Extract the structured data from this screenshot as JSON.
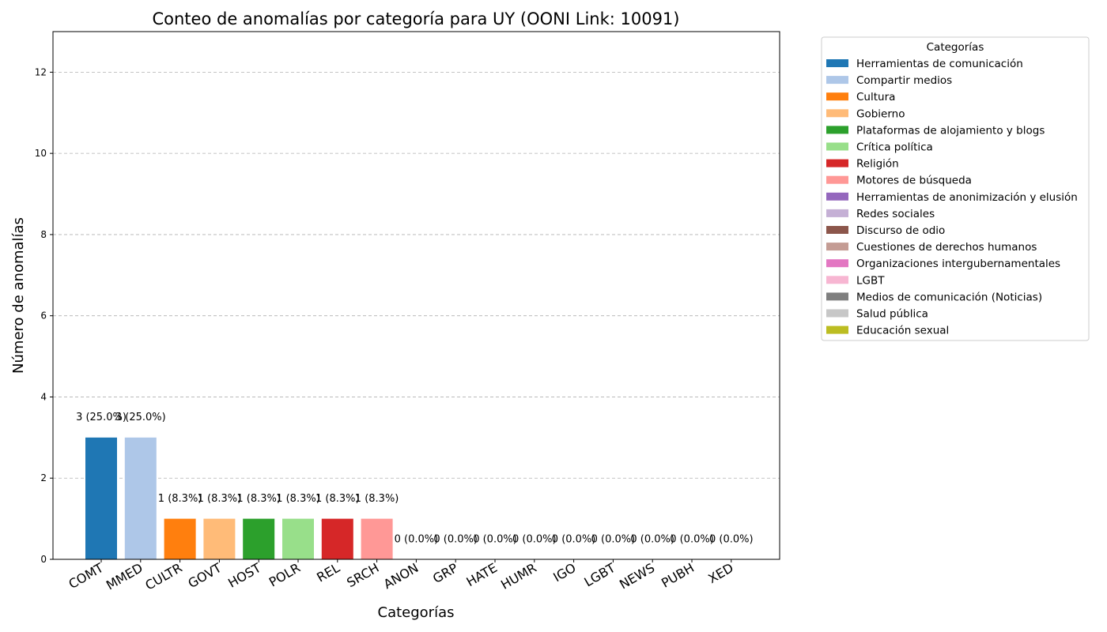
{
  "chart_data": {
    "type": "bar",
    "title": "Conteo de anomalías por categoría para UY (OONI Link: 10091)",
    "xlabel": "Categorías",
    "ylabel": "Número de anomalías",
    "ylim": [
      0,
      13
    ],
    "yticks": [
      0,
      2,
      4,
      6,
      8,
      10,
      12
    ],
    "grid": "y-dashed",
    "categories": [
      "COMT",
      "MMED",
      "CULTR",
      "GOVT",
      "HOST",
      "POLR",
      "REL",
      "SRCH",
      "ANON",
      "GRP",
      "HATE",
      "HUMR",
      "IGO",
      "LGBT",
      "NEWS",
      "PUBH",
      "XED"
    ],
    "values": [
      3,
      3,
      1,
      1,
      1,
      1,
      1,
      1,
      0,
      0,
      0,
      0,
      0,
      0,
      0,
      0,
      0
    ],
    "data_labels": [
      "3 (25.0%)",
      "3 (25.0%)",
      "1 (8.3%)",
      "1 (8.3%)",
      "1 (8.3%)",
      "1 (8.3%)",
      "1 (8.3%)",
      "1 (8.3%)",
      "0 (0.0%)",
      "0 (0.0%)",
      "0 (0.0%)",
      "0 (0.0%)",
      "0 (0.0%)",
      "0 (0.0%)",
      "0 (0.0%)",
      "0 (0.0%)",
      "0 (0.0%)"
    ],
    "colors": [
      "#1f77b4",
      "#aec7e8",
      "#ff7f0e",
      "#ffbb78",
      "#2ca02c",
      "#98df8a",
      "#d62728",
      "#ff9896",
      "#9467bd",
      "#c5b0d5",
      "#8c564b",
      "#c49c94",
      "#e377c2",
      "#f7b6d2",
      "#7f7f7f",
      "#c7c7c7",
      "#bcbd22"
    ],
    "legend": {
      "title": "Categorías",
      "placement": "outside-right-top",
      "entries": [
        "Herramientas de comunicación",
        "Compartir medios",
        "Cultura",
        "Gobierno",
        "Plataformas de alojamiento y blogs",
        "Crítica política",
        "Religión",
        "Motores de búsqueda",
        "Herramientas de anonimización y elusión",
        "Redes sociales",
        "Discurso de odio",
        "Cuestiones de derechos humanos",
        "Organizaciones intergubernamentales",
        "LGBT",
        "Medios de comunicación (Noticias)",
        "Salud pública",
        "Educación sexual"
      ]
    }
  }
}
